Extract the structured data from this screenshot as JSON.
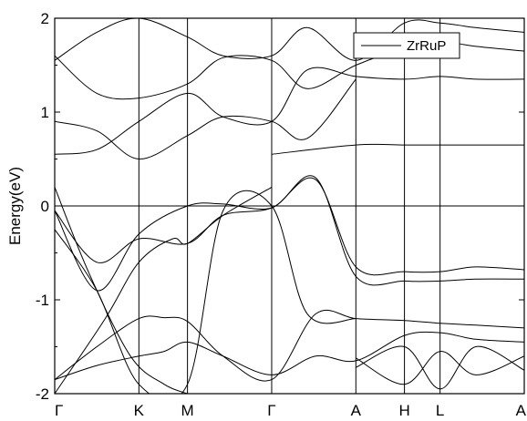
{
  "chart_data": {
    "type": "line",
    "title": "",
    "xlabel": "",
    "ylabel": "Energy(eV)",
    "ylim": [
      -2,
      2
    ],
    "y_ticks": [
      -2,
      -1,
      0,
      1,
      2
    ],
    "x_ticks": [
      "Γ",
      "K",
      "M",
      "Γ",
      "A",
      "H",
      "L",
      "A"
    ],
    "x_tick_positions": [
      0,
      1,
      1.577,
      2.577,
      3.577,
      4.154,
      4.577,
      5.577
    ],
    "fermi_level": 0,
    "grid": false,
    "legend": {
      "placement": "top-right",
      "entries": [
        "ZrRuP"
      ]
    },
    "series": [
      {
        "name": "ZrRuP",
        "x": [
          0,
          0.5,
          1,
          1.3,
          1.577,
          2,
          2.577,
          3.1,
          3.577,
          4.154,
          4.577,
          5,
          5.577
        ],
        "y": [
          -1.85,
          -1.5,
          -1.2,
          -1.19,
          -1.23,
          -1.6,
          -1.85,
          -1.15,
          -1.2,
          -1.22,
          -1.25,
          -1.27,
          -1.3
        ]
      },
      {
        "x": [
          0,
          0.5,
          1,
          1.3,
          1.577,
          2,
          2.577,
          3.1,
          3.577,
          4.154,
          4.577,
          5,
          5.577
        ],
        "y": [
          -1.85,
          -1.7,
          -1.6,
          -1.55,
          -1.45,
          -1.6,
          -1.8,
          -1.6,
          -1.65,
          -1.38,
          -1.35,
          -1.42,
          -1.45
        ]
      },
      {
        "x": [
          0,
          0.5,
          1,
          1.577,
          2,
          2.577,
          3.1,
          3.577,
          4.154,
          4.577,
          5,
          5.577
        ],
        "y": [
          -0.05,
          -0.9,
          -0.3,
          0.0,
          0.02,
          -0.02,
          0.3,
          -0.75,
          -0.8,
          -0.8,
          -0.78,
          -0.78
        ]
      },
      {
        "x": [
          0,
          0.5,
          1,
          1.577,
          2,
          2.577,
          3.1,
          3.577,
          4.154,
          4.577,
          5,
          5.577
        ],
        "y": [
          -0.05,
          -0.6,
          -0.35,
          -0.4,
          -0.1,
          -0.02,
          0.28,
          -0.65,
          -0.7,
          -0.7,
          -0.65,
          -0.68
        ]
      },
      {
        "x": [
          0,
          0.5,
          1,
          1.577,
          2.0,
          2.577,
          3.0,
          3.577
        ],
        "y": [
          0.9,
          0.8,
          0.5,
          0.75,
          0.95,
          0.9,
          0.72,
          1.35
        ]
      },
      {
        "x": [
          2.577,
          3.577,
          4.154,
          4.577,
          5,
          5.577
        ],
        "y": [
          0.55,
          0.65,
          0.65,
          0.65,
          0.65,
          0.65
        ]
      },
      {
        "x": [
          0,
          0.5,
          1,
          1.577,
          2,
          2.577,
          3.0,
          3.577,
          4.154,
          4.577,
          5,
          5.577
        ],
        "y": [
          0.55,
          0.6,
          0.9,
          1.2,
          0.95,
          0.9,
          1.45,
          1.38,
          1.35,
          1.38,
          1.35,
          1.35
        ]
      },
      {
        "x": [
          0,
          0.5,
          1,
          1.577,
          2,
          2.577,
          3.0,
          3.577,
          4.154,
          4.577,
          5,
          5.577
        ],
        "y": [
          1.6,
          1.2,
          1.15,
          1.3,
          1.58,
          1.55,
          1.25,
          1.5,
          1.68,
          1.75,
          1.7,
          1.65
        ]
      },
      {
        "x": [
          0,
          0.5,
          1,
          1.577,
          2,
          2.577,
          3.0,
          3.577,
          4.154,
          4.577,
          5,
          5.577
        ],
        "y": [
          1.55,
          1.85,
          2.0,
          1.8,
          1.6,
          1.6,
          1.9,
          1.55,
          1.95,
          1.95,
          1.9,
          1.85
        ]
      },
      {
        "x": [
          0,
          0.4,
          0.9,
          1.3,
          1.577
        ],
        "y": [
          0.2,
          -0.7,
          -1.6,
          -1.9,
          -2.0
        ]
      },
      {
        "x": [
          0,
          0.6,
          1,
          1.4,
          1.577,
          2.0,
          2.577
        ],
        "y": [
          -2.0,
          -1.2,
          -0.6,
          -0.35,
          -0.4,
          -0.1,
          0.2
        ]
      },
      {
        "x": [
          0,
          0.5,
          1,
          1.577,
          2.0,
          2.577,
          3.0,
          3.577
        ],
        "y": [
          -0.25,
          -0.9,
          -1.9,
          -1.9,
          -0.05,
          0.0,
          -1.15,
          -1.2
        ]
      },
      {
        "x": [
          3.577,
          4.154,
          4.577,
          5,
          5.577
        ],
        "y": [
          -1.62,
          -1.9,
          -1.55,
          -1.8,
          -1.6
        ]
      },
      {
        "x": [
          3.577,
          4.154,
          4.577,
          5,
          5.577
        ],
        "y": [
          -1.72,
          -1.5,
          -1.95,
          -1.5,
          -1.75
        ]
      }
    ]
  }
}
